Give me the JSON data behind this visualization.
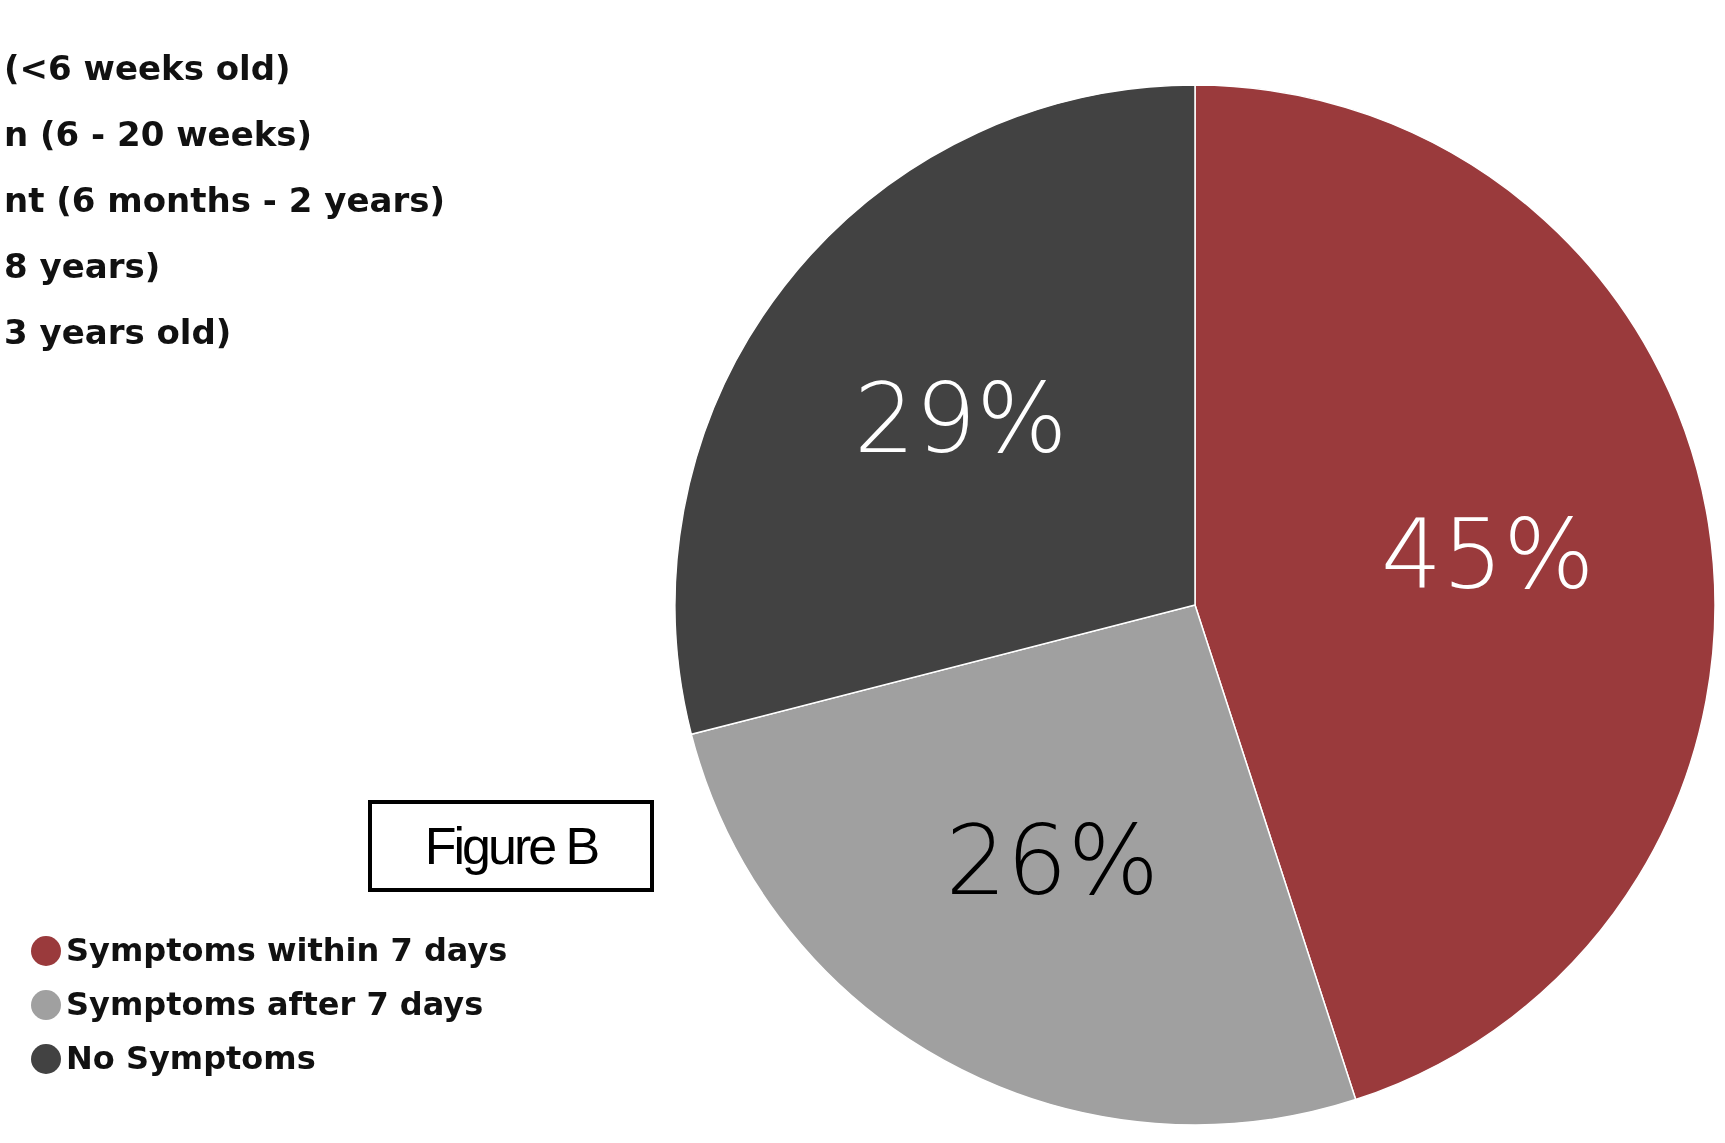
{
  "chart_data": {
    "type": "pie",
    "categories": [
      "Symptoms within 7 days",
      "Symptoms after 7 days",
      "No Symptoms"
    ],
    "values": [
      45,
      26,
      29
    ],
    "colors": [
      "#9a3a3c",
      "#a0a0a0",
      "#424242"
    ],
    "value_labels": [
      "45%",
      "26%",
      "29%"
    ],
    "legend": "bottom left",
    "annotations": [
      "(<6 weeks old)",
      "n (6 - 20 weeks)",
      "nt (6 months - 2 years)",
      "8 years)",
      "3 years old)",
      "Figure B"
    ]
  }
}
